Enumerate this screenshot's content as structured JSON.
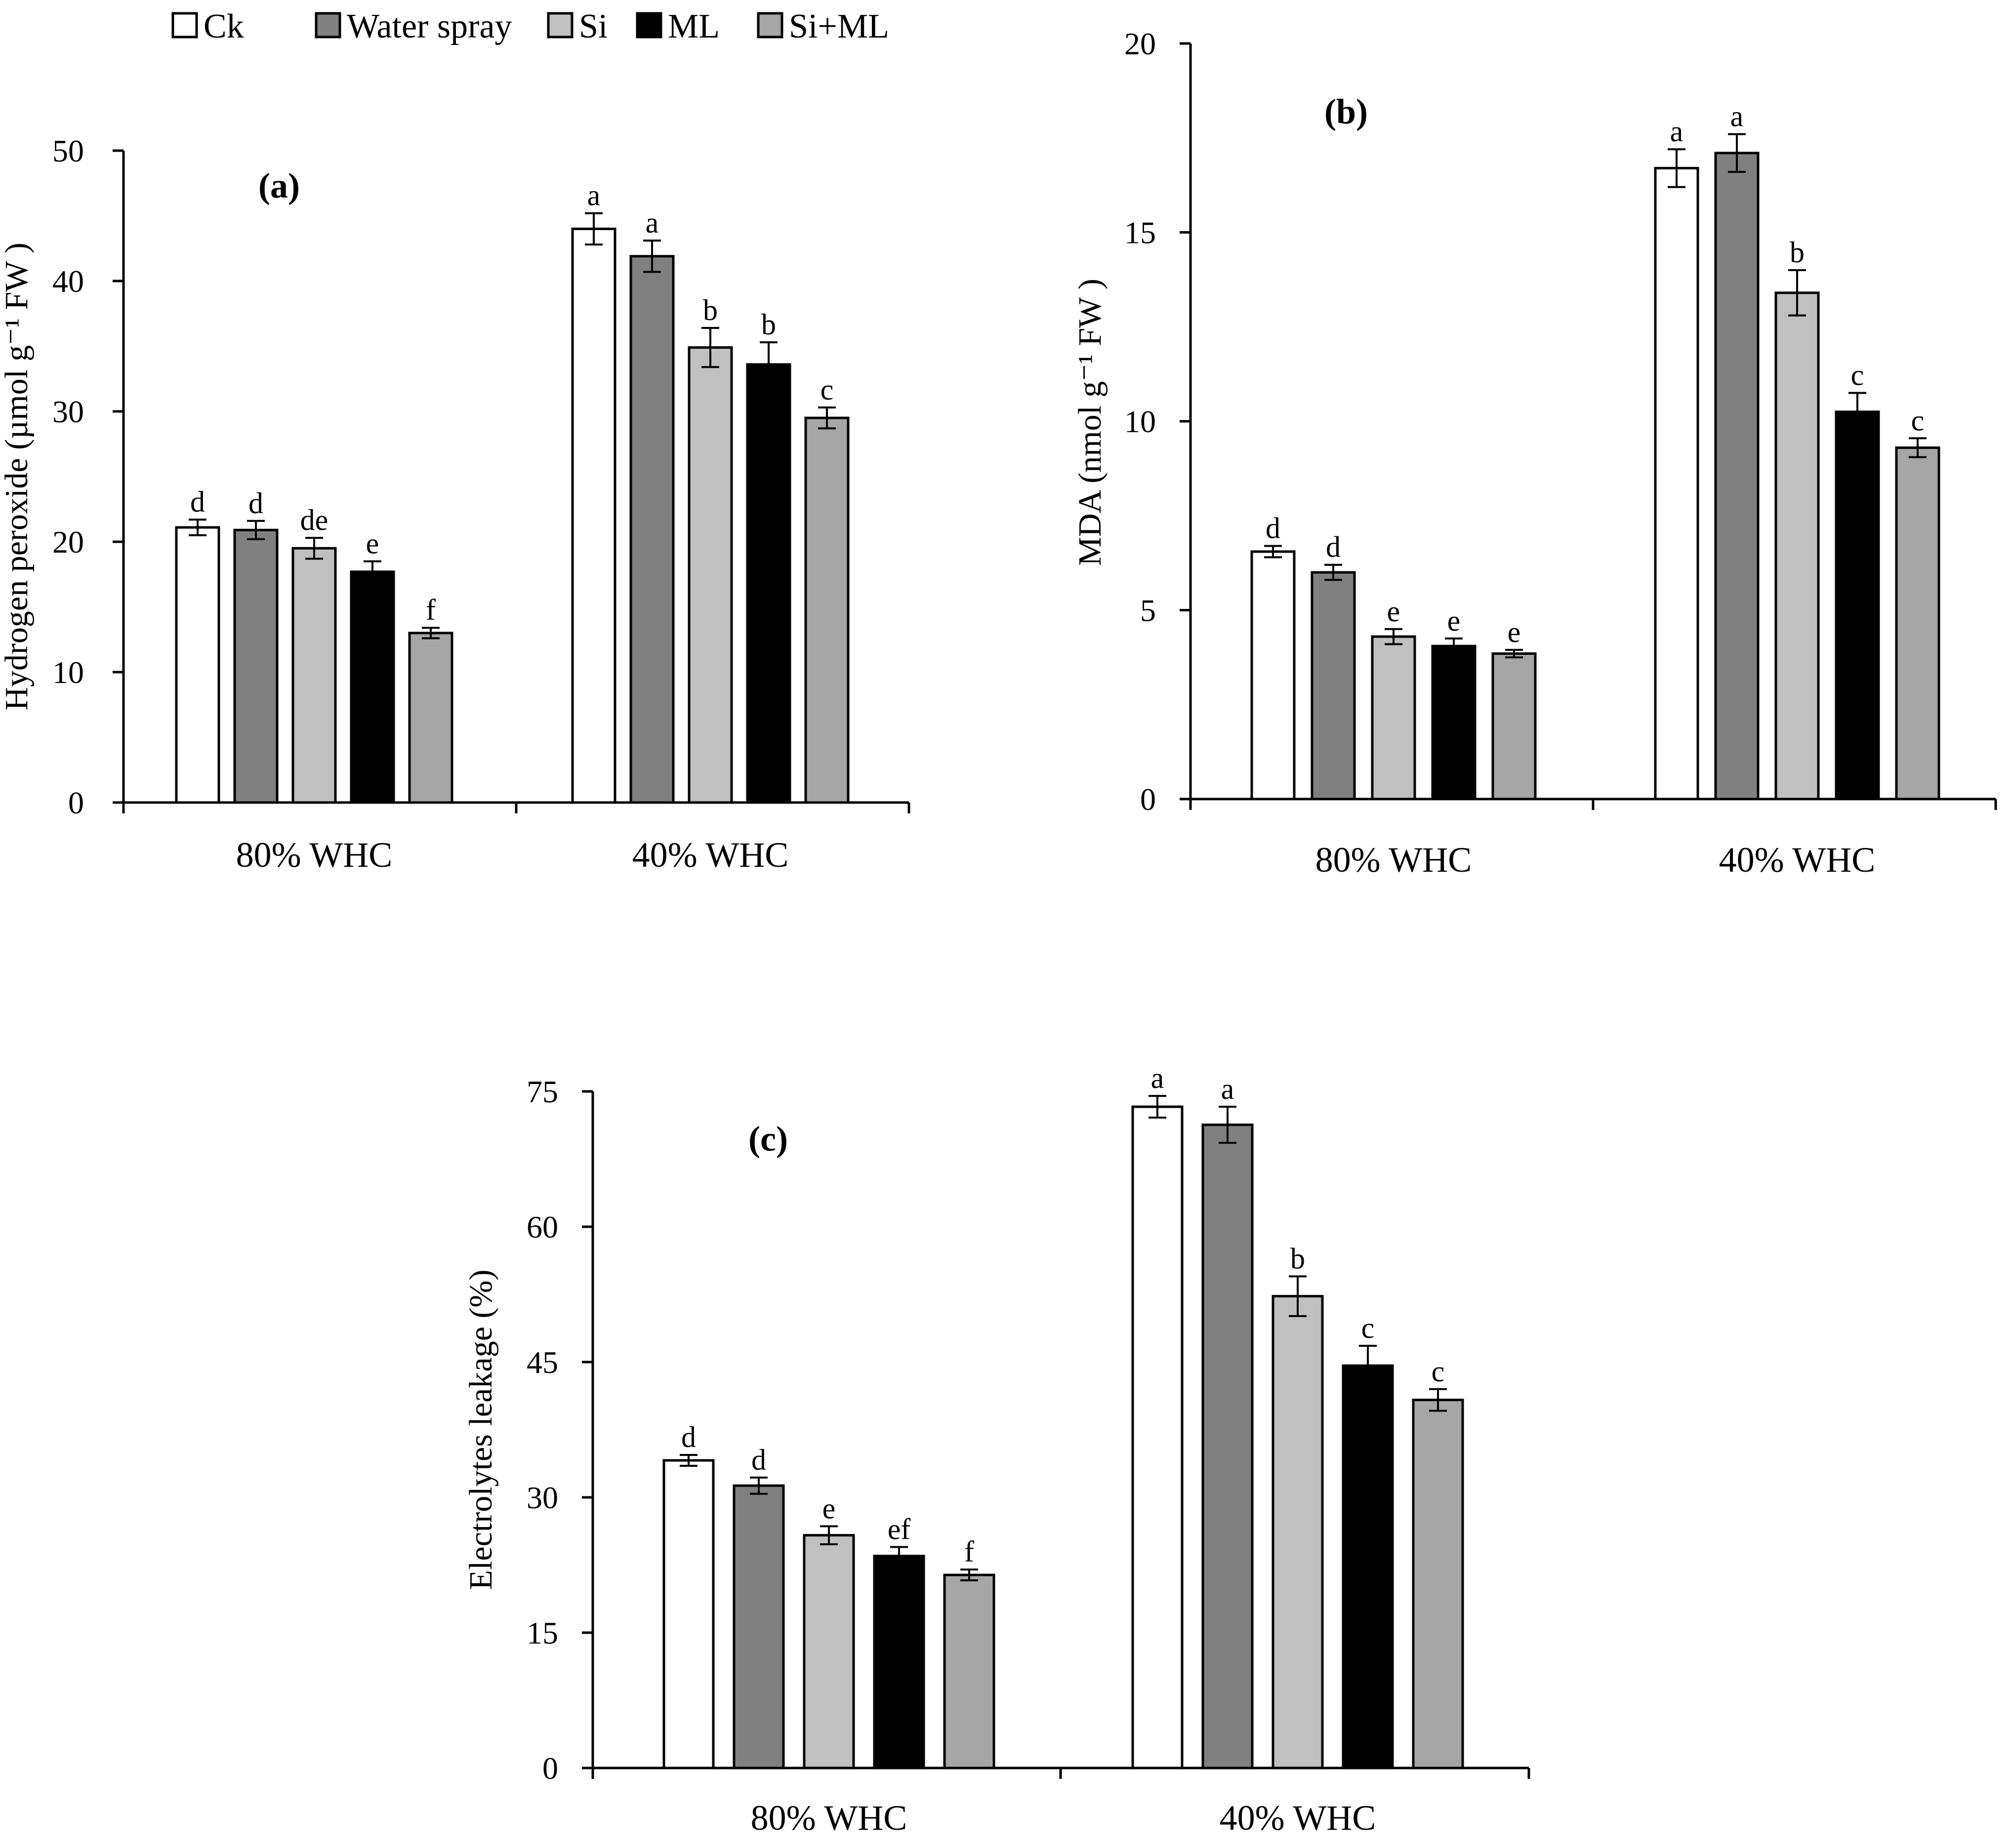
{
  "legend": [
    {
      "label": "Ck",
      "color": "#ffffff"
    },
    {
      "label": "Water spray",
      "color": "#808080"
    },
    {
      "label": "Si",
      "color": "#c0c0c0"
    },
    {
      "label": "ML",
      "color": "#000000"
    },
    {
      "label": "Si+ML",
      "color": "#a6a6a6"
    }
  ],
  "chart_data": [
    {
      "type": "bar",
      "panel_label": "(a)",
      "ylabel": "Hydrogen peroxide (µmol g⁻¹ FW )",
      "ylim": [
        0,
        50
      ],
      "yticks": [
        0,
        10,
        20,
        30,
        40,
        50
      ],
      "categories": [
        "80% WHC",
        "40% WHC"
      ],
      "series": [
        {
          "name": "Ck",
          "values": [
            21.1,
            44.0
          ],
          "errors": [
            0.6,
            1.2
          ],
          "letters": [
            "d",
            "a"
          ]
        },
        {
          "name": "Water spray",
          "values": [
            20.9,
            41.9
          ],
          "errors": [
            0.7,
            1.2
          ],
          "letters": [
            "d",
            "a"
          ]
        },
        {
          "name": "Si",
          "values": [
            19.5,
            34.9
          ],
          "errors": [
            0.8,
            1.5
          ],
          "letters": [
            "de",
            "b"
          ]
        },
        {
          "name": "ML",
          "values": [
            17.7,
            33.6
          ],
          "errors": [
            0.8,
            1.7
          ],
          "letters": [
            "e",
            "b"
          ]
        },
        {
          "name": "Si+ML",
          "values": [
            13.0,
            29.5
          ],
          "errors": [
            0.4,
            0.8
          ],
          "letters": [
            "f",
            "c"
          ]
        }
      ]
    },
    {
      "type": "bar",
      "panel_label": "(b)",
      "ylabel": "MDA (nmol g⁻¹ FW )",
      "ylim": [
        0,
        20
      ],
      "yticks": [
        0,
        5,
        10,
        15,
        20
      ],
      "categories": [
        "80% WHC",
        "40% WHC"
      ],
      "series": [
        {
          "name": "Ck",
          "values": [
            6.55,
            16.7
          ],
          "errors": [
            0.15,
            0.5
          ],
          "letters": [
            "d",
            "a"
          ]
        },
        {
          "name": "Water spray",
          "values": [
            6.0,
            17.1
          ],
          "errors": [
            0.2,
            0.5
          ],
          "letters": [
            "d",
            "a"
          ]
        },
        {
          "name": "Si",
          "values": [
            4.3,
            13.4
          ],
          "errors": [
            0.2,
            0.6
          ],
          "letters": [
            "e",
            "b"
          ]
        },
        {
          "name": "ML",
          "values": [
            4.05,
            10.25
          ],
          "errors": [
            0.2,
            0.5
          ],
          "letters": [
            "e",
            "c"
          ]
        },
        {
          "name": "Si+ML",
          "values": [
            3.85,
            9.3
          ],
          "errors": [
            0.1,
            0.25
          ],
          "letters": [
            "e",
            "c"
          ]
        }
      ]
    },
    {
      "type": "bar",
      "panel_label": "(c)",
      "ylabel": "Electrolytes leakage (%)",
      "ylim": [
        0,
        75
      ],
      "yticks": [
        0,
        15,
        30,
        45,
        60,
        75
      ],
      "categories": [
        "80% WHC",
        "40% WHC"
      ],
      "series": [
        {
          "name": "Ck",
          "values": [
            34.1,
            73.3
          ],
          "errors": [
            0.6,
            1.2
          ],
          "letters": [
            "d",
            "a"
          ]
        },
        {
          "name": "Water spray",
          "values": [
            31.3,
            71.3
          ],
          "errors": [
            0.9,
            2.0
          ],
          "letters": [
            "d",
            "a"
          ]
        },
        {
          "name": "Si",
          "values": [
            25.8,
            52.3
          ],
          "errors": [
            1.0,
            2.2
          ],
          "letters": [
            "e",
            "b"
          ]
        },
        {
          "name": "ML",
          "values": [
            23.5,
            44.6
          ],
          "errors": [
            1.0,
            2.2
          ],
          "letters": [
            "ef",
            "c"
          ]
        },
        {
          "name": "Si+ML",
          "values": [
            21.4,
            40.8
          ],
          "errors": [
            0.6,
            1.2
          ],
          "letters": [
            "f",
            "c"
          ]
        }
      ]
    }
  ]
}
